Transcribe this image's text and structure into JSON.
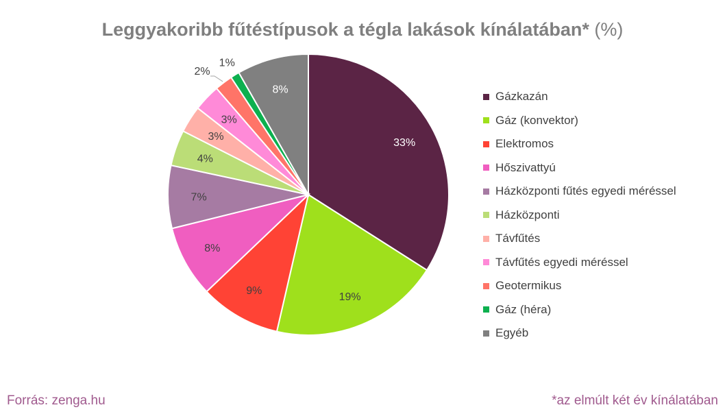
{
  "chart_data": {
    "type": "pie",
    "title": "Leggyakoribb fűtéstípusok a tégla lakások kínálatában*",
    "title_suffix": "(%)",
    "categories": [
      "Gázkazán",
      "Gáz (konvektor)",
      "Elektromos",
      "Hőszivattyú",
      "Házközponti fűtés egyedi méréssel",
      "Házközponti",
      "Távfűtés",
      "Távfűtés egyedi méréssel",
      "Geotermikus",
      "Gáz (héra)",
      "Egyéb"
    ],
    "values": [
      33,
      19,
      9,
      8,
      7,
      4,
      3,
      3,
      2,
      1,
      8
    ],
    "data_labels": [
      "33%",
      "19%",
      "9%",
      "8%",
      "7%",
      "4%",
      "3%",
      "3%",
      "2%",
      "1%",
      "8%"
    ],
    "colors": [
      "#5b2445",
      "#9fe01c",
      "#ff4335",
      "#f05ec0",
      "#a67ba3",
      "#bbdd77",
      "#ffb0a8",
      "#ff8ad8",
      "#ff7468",
      "#0db04f",
      "#808080"
    ],
    "label_colors": [
      "#ffffff",
      "#404040",
      "#404040",
      "#404040",
      "#404040",
      "#404040",
      "#404040",
      "#404040",
      "#404040",
      "#404040",
      "#ffffff"
    ],
    "legend_position": "right",
    "start_angle_deg": 0,
    "direction": "clockwise"
  },
  "source": "Forrás: zenga.hu",
  "footnote": "*az elmúlt két év kínálatában"
}
